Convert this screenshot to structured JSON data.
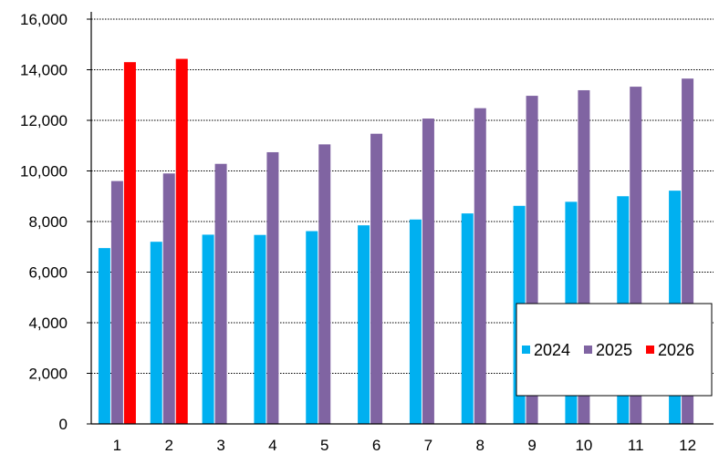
{
  "chart_data": {
    "type": "bar",
    "title": "",
    "unit_label": "",
    "xlabel": "",
    "ylabel": "",
    "categories": [
      "1",
      "2",
      "3",
      "4",
      "5",
      "6",
      "7",
      "8",
      "9",
      "10",
      "11",
      "12"
    ],
    "ylim": [
      0,
      16000
    ],
    "yticks": [
      "0",
      "2,000",
      "4,000",
      "6,000",
      "8,000",
      "10,000",
      "12,000",
      "14,000",
      "16,000"
    ],
    "grid": true,
    "legend": "bottom-right",
    "series": [
      {
        "name": "2024",
        "color": "#00B0F0",
        "values": [
          6950,
          7200,
          7480,
          7470,
          7620,
          7850,
          8080,
          8320,
          8620,
          8780,
          9000,
          9220
        ]
      },
      {
        "name": "2025",
        "color": "#8064A2",
        "values": [
          9600,
          9900,
          10280,
          10740,
          11050,
          11470,
          12070,
          12480,
          12970,
          13190,
          13330,
          13650
        ]
      },
      {
        "name": "2026",
        "color": "#FF0000",
        "values": [
          14300,
          14430,
          null,
          null,
          null,
          null,
          null,
          null,
          null,
          null,
          null,
          null
        ]
      }
    ]
  }
}
